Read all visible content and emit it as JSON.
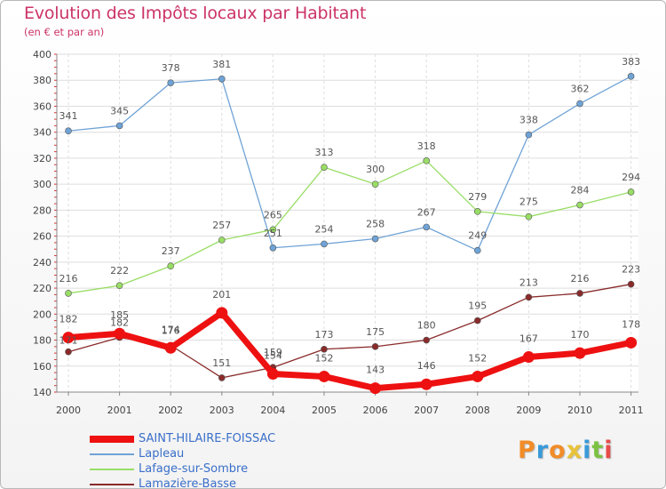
{
  "header": {
    "title": "Evolution des Impôts locaux par Habitant",
    "subtitle": "(en € et par an)"
  },
  "logo": {
    "text": "Proxiti",
    "letters": [
      "P",
      "r",
      "o",
      "x",
      "i",
      "t",
      "i"
    ],
    "colors": [
      "#f28c28",
      "#3a9ad9",
      "#f28c28",
      "#e8c33a",
      "#3a9ad9",
      "#7cc242",
      "#e84a4a"
    ]
  },
  "chart_data": {
    "type": "line",
    "title": "Evolution des Impôts locaux par Habitant",
    "subtitle": "(en € et par an)",
    "xlabel": "",
    "ylabel": "",
    "categories": [
      "2000",
      "2001",
      "2002",
      "2003",
      "2004",
      "2005",
      "2006",
      "2007",
      "2008",
      "2009",
      "2010",
      "2011"
    ],
    "ylim": [
      140,
      400
    ],
    "yticks": [
      140,
      160,
      180,
      200,
      220,
      240,
      260,
      280,
      300,
      320,
      340,
      360,
      380,
      400
    ],
    "grid": true,
    "legend_position": "bottom-left",
    "series": [
      {
        "name": "SAINT-HILAIRE-FOISSAC",
        "color": "#ee1111",
        "values": [
          182,
          185,
          174,
          201,
          154,
          152,
          143,
          146,
          152,
          167,
          170,
          178
        ],
        "labels": [
          "182",
          "185",
          "174",
          "201",
          "154",
          "152",
          "143",
          "146",
          "152",
          "167",
          "170",
          "178"
        ],
        "label_dy": [
          -17,
          -17,
          -17,
          -17,
          -17,
          -17,
          -17,
          -17,
          -17,
          -17,
          -17,
          -17
        ]
      },
      {
        "name": "Lapleau",
        "color": "#6fa3d6",
        "values": [
          341,
          345,
          378,
          381,
          251,
          254,
          258,
          267,
          249,
          338,
          362,
          383
        ],
        "labels": [
          "341",
          "345",
          "378",
          "381",
          "251",
          "254",
          "258",
          "267",
          "249",
          "338",
          "362",
          "383"
        ],
        "label_dy": [
          -13,
          -13,
          -13,
          -13,
          -13,
          -13,
          -13,
          -13,
          -13,
          -13,
          -13,
          -13
        ]
      },
      {
        "name": "Lafage-sur-Sombre",
        "color": "#99dd66",
        "values": [
          216,
          222,
          237,
          257,
          265,
          313,
          300,
          318,
          279,
          275,
          284,
          294
        ],
        "labels": [
          "216",
          "222",
          "237",
          "257",
          "265",
          "313",
          "300",
          "318",
          "279",
          "275",
          "284",
          "294"
        ],
        "label_dy": [
          -13,
          -13,
          -13,
          -13,
          -13,
          -13,
          -13,
          -13,
          -13,
          -13,
          -13,
          -13
        ]
      },
      {
        "name": "Lamazière-Basse",
        "color": "#8a2b2b",
        "values": [
          171,
          182,
          176,
          151,
          159,
          173,
          175,
          180,
          195,
          213,
          216,
          223
        ],
        "labels": [
          "171",
          "182",
          "176",
          "151",
          "159",
          "173",
          "175",
          "180",
          "195",
          "213",
          "216",
          "223"
        ],
        "label_dy": [
          -9,
          -13,
          -13,
          -13,
          -13,
          -13,
          -13,
          -13,
          -13,
          -13,
          -13,
          -13
        ]
      }
    ]
  }
}
